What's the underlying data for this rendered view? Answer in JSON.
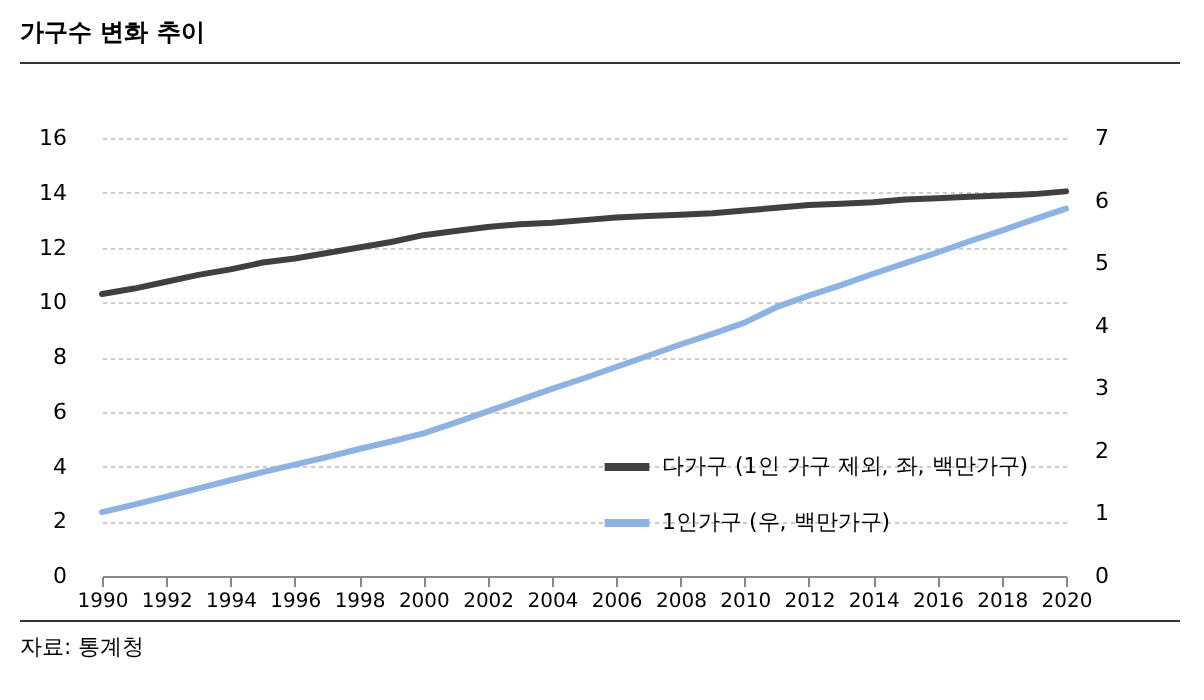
{
  "chart_data": {
    "type": "line",
    "title": "가구수 변화 추이",
    "annotations": [
      "자료: 통계청"
    ],
    "x": [
      1990,
      1991,
      1992,
      1993,
      1994,
      1995,
      1996,
      1997,
      1998,
      1999,
      2000,
      2001,
      2002,
      2003,
      2004,
      2005,
      2006,
      2007,
      2008,
      2009,
      2010,
      2011,
      2012,
      2013,
      2014,
      2015,
      2016,
      2017,
      2018,
      2019,
      2020
    ],
    "series": [
      {
        "name": "다가구 (1인 가구 제외, 좌, 백만가구)",
        "color": "#404040",
        "values": [
          10.3,
          10.5,
          10.75,
          11.0,
          11.2,
          11.45,
          11.6,
          11.8,
          12.0,
          12.2,
          12.45,
          12.6,
          12.75,
          12.85,
          12.9,
          13.0,
          13.1,
          13.15,
          13.2,
          13.25,
          13.35,
          13.45,
          13.55,
          13.6,
          13.65,
          13.75,
          13.8,
          13.85,
          13.9,
          13.95,
          14.05
        ]
      },
      {
        "name": "1인가구 (우, 백만가구)",
        "color": "#8db3e2",
        "axis": "y2",
        "values": [
          1.02,
          1.14,
          1.27,
          1.4,
          1.53,
          1.66,
          1.78,
          1.9,
          2.03,
          2.15,
          2.28,
          2.45,
          2.63,
          2.81,
          2.99,
          3.16,
          3.34,
          3.52,
          3.7,
          3.87,
          4.05,
          4.3,
          4.48,
          4.65,
          4.83,
          5.0,
          5.17,
          5.35,
          5.52,
          5.7,
          5.87
        ]
      }
    ],
    "xlim": [
      1990,
      2020
    ],
    "xticks": [
      1990,
      1992,
      1994,
      1996,
      1998,
      2000,
      2002,
      2004,
      2006,
      2008,
      2010,
      2012,
      2014,
      2016,
      2018,
      2020
    ],
    "ylim": [
      0,
      16
    ],
    "yticks": [
      0,
      2,
      4,
      6,
      8,
      10,
      12,
      14,
      16
    ],
    "y2lim": [
      0,
      7
    ],
    "y2ticks": [
      0,
      1,
      2,
      3,
      4,
      5,
      6,
      7
    ],
    "grid": "y",
    "legend": "bottom right",
    "line_style": "solid",
    "marker": "none"
  }
}
